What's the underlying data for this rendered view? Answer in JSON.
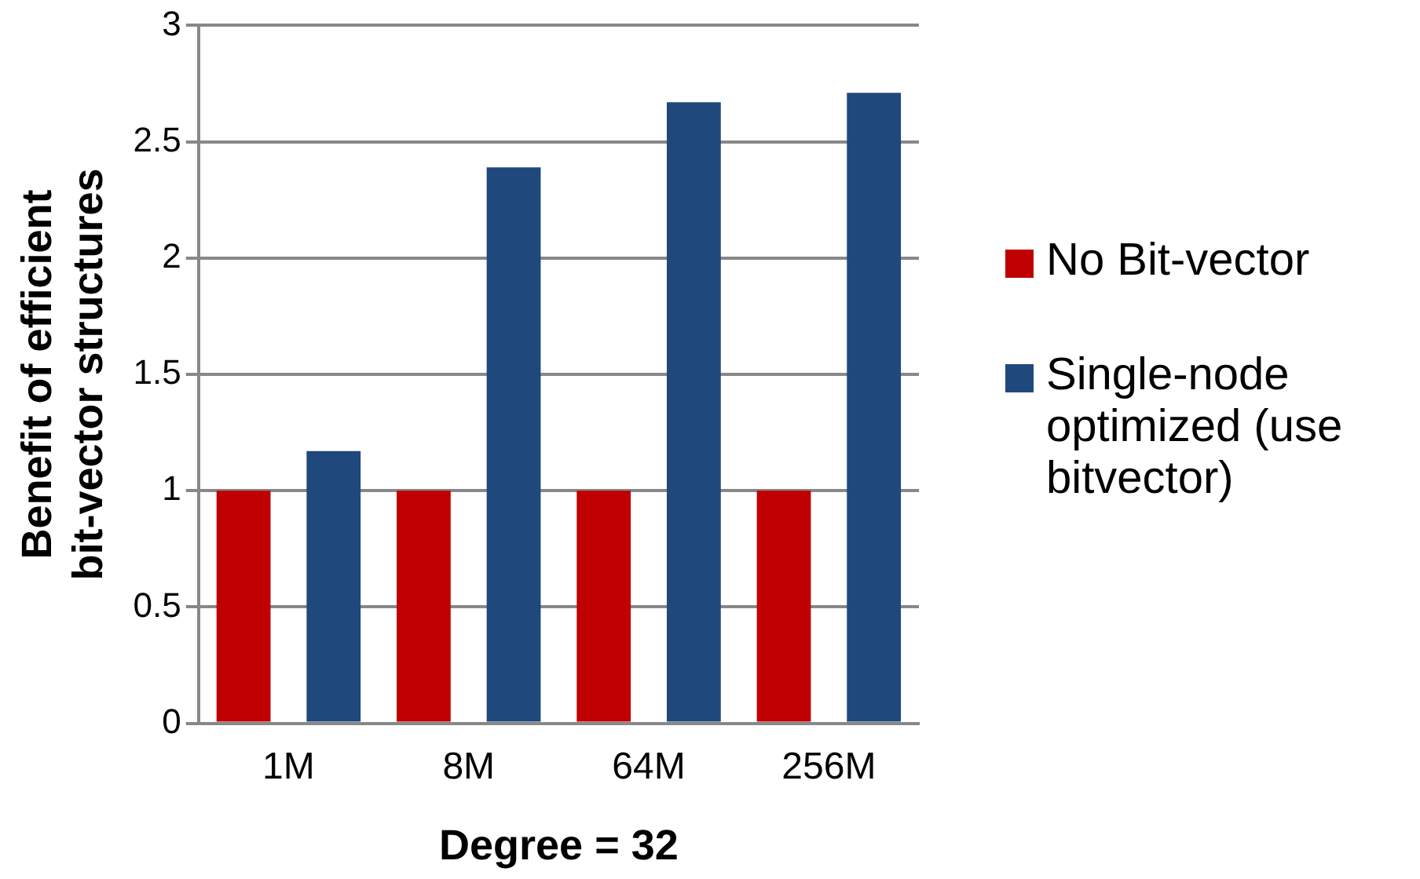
{
  "chart_data": {
    "type": "bar",
    "xlabel": "Degree = 32",
    "ylabel": "Benefit of efficient bit-vector structures",
    "categories": [
      "1M",
      "8M",
      "64M",
      "256M"
    ],
    "series": [
      {
        "name": "No Bit-vector",
        "color": "#c00000",
        "values": [
          1,
          1,
          1,
          1
        ]
      },
      {
        "name": "Single-node optimized (use bitvector)",
        "color": "#1f497d",
        "values": [
          1.17,
          2.39,
          2.67,
          2.71
        ]
      }
    ],
    "ylim": [
      0,
      3
    ],
    "yticks": [
      0,
      0.5,
      1,
      1.5,
      2,
      2.5,
      3
    ],
    "grid": "y",
    "legend": "right"
  }
}
